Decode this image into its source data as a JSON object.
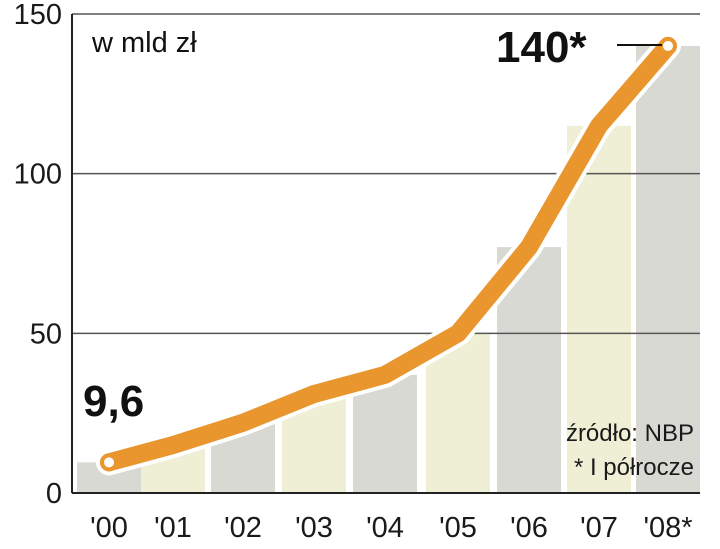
{
  "chart_data": {
    "type": "line",
    "unit_label": "w mld zł",
    "categories": [
      "'00",
      "'01",
      "'02",
      "'03",
      "'04",
      "'05",
      "'06",
      "'07",
      "'08*"
    ],
    "values": [
      9.6,
      15,
      22,
      31,
      37,
      50,
      77,
      115,
      140
    ],
    "ylim": [
      0,
      150
    ],
    "yticks": [
      "0",
      "50",
      "100",
      "150"
    ],
    "grid": true,
    "annotations": {
      "first": "9,6",
      "last": "140*"
    },
    "source": "źródło: NBP",
    "footnote": "* I półrocze",
    "colors": {
      "line": "#e8962d",
      "line_outline": "#ffffff",
      "bar_gray": "#d9d9d4",
      "bar_yellow": "#efefd6",
      "grid": "#555555"
    },
    "bar_colors": [
      "bar_gray",
      "bar_yellow",
      "bar_gray",
      "bar_yellow",
      "bar_gray",
      "bar_yellow",
      "bar_gray",
      "bar_yellow",
      "bar_gray"
    ]
  }
}
